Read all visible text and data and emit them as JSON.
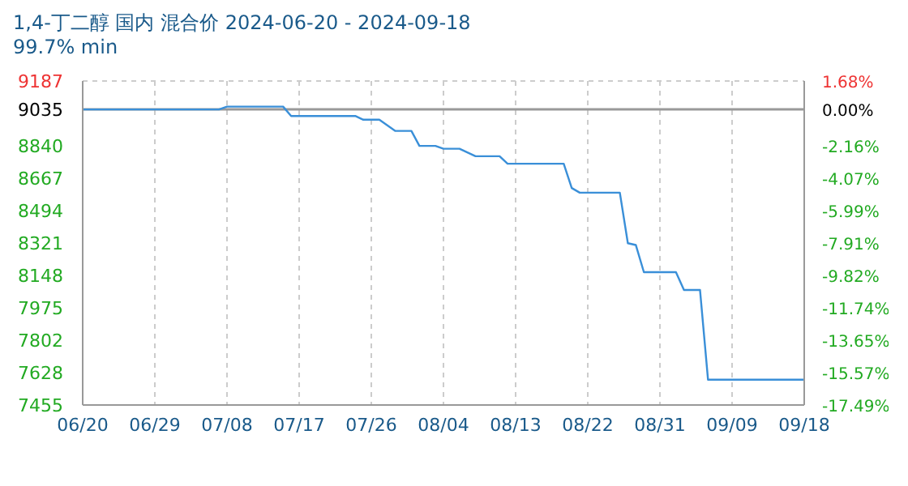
{
  "chart_data": {
    "type": "line",
    "title": "1,4-丁二醇 国内 混合价 2024-06-20 - 2024-09-18",
    "subtitle": "99.7% min",
    "x": [
      "2024-06-20",
      "2024-07-07",
      "2024-07-08",
      "2024-07-15",
      "2024-07-16",
      "2024-07-24",
      "2024-07-25",
      "2024-07-27",
      "2024-07-28",
      "2024-07-29",
      "2024-07-31",
      "2024-08-01",
      "2024-08-03",
      "2024-08-04",
      "2024-08-06",
      "2024-08-08",
      "2024-08-11",
      "2024-08-12",
      "2024-08-19",
      "2024-08-20",
      "2024-08-21",
      "2024-08-26",
      "2024-08-27",
      "2024-08-28",
      "2024-08-29",
      "2024-09-02",
      "2024-09-03",
      "2024-09-05",
      "2024-09-06",
      "2024-09-18"
    ],
    "series": [
      {
        "color": "#3a8fd8",
        "values": [
          9035,
          9035,
          9050,
          9050,
          9000,
          9000,
          8980,
          8980,
          8950,
          8920,
          8920,
          8840,
          8840,
          8825,
          8825,
          8785,
          8785,
          8745,
          8745,
          8615,
          8590,
          8590,
          8320,
          8310,
          8165,
          8165,
          8070,
          8070,
          7590,
          7590
        ]
      }
    ],
    "xlim": [
      "2024-06-20",
      "2024-09-18"
    ],
    "xticks": [
      {
        "value": "2024-06-20",
        "label": "06/20"
      },
      {
        "value": "2024-06-29",
        "label": "06/29"
      },
      {
        "value": "2024-07-08",
        "label": "07/08"
      },
      {
        "value": "2024-07-17",
        "label": "07/17"
      },
      {
        "value": "2024-07-26",
        "label": "07/26"
      },
      {
        "value": "2024-08-04",
        "label": "08/04"
      },
      {
        "value": "2024-08-13",
        "label": "08/13"
      },
      {
        "value": "2024-08-22",
        "label": "08/22"
      },
      {
        "value": "2024-08-31",
        "label": "08/31"
      },
      {
        "value": "2024-09-09",
        "label": "09/09"
      },
      {
        "value": "2024-09-18",
        "label": "09/18"
      }
    ],
    "ylim": [
      7455,
      9187
    ],
    "yticks": [
      7455,
      7628,
      7802,
      7975,
      8148,
      8321,
      8494,
      8667,
      8840,
      9035,
      9187
    ],
    "y2lim": [
      -17.49,
      1.68
    ],
    "y2ticks": [
      {
        "value": -17.49,
        "label": "-17.49%"
      },
      {
        "value": -15.57,
        "label": "-15.57%"
      },
      {
        "value": -13.65,
        "label": "-13.65%"
      },
      {
        "value": -11.74,
        "label": "-11.74%"
      },
      {
        "value": -9.82,
        "label": "-9.82%"
      },
      {
        "value": -7.91,
        "label": "-7.91%"
      },
      {
        "value": -5.99,
        "label": "-5.99%"
      },
      {
        "value": -4.07,
        "label": "-4.07%"
      },
      {
        "value": -2.16,
        "label": "-2.16%"
      },
      {
        "value": 0,
        "label": "0.00%"
      },
      {
        "value": 1.68,
        "label": "1.68%"
      }
    ],
    "ref_lines": [
      {
        "axis": "y",
        "value": 9035,
        "color": "#999999"
      }
    ],
    "grid": true,
    "marker": "none",
    "line_style": "solid"
  }
}
